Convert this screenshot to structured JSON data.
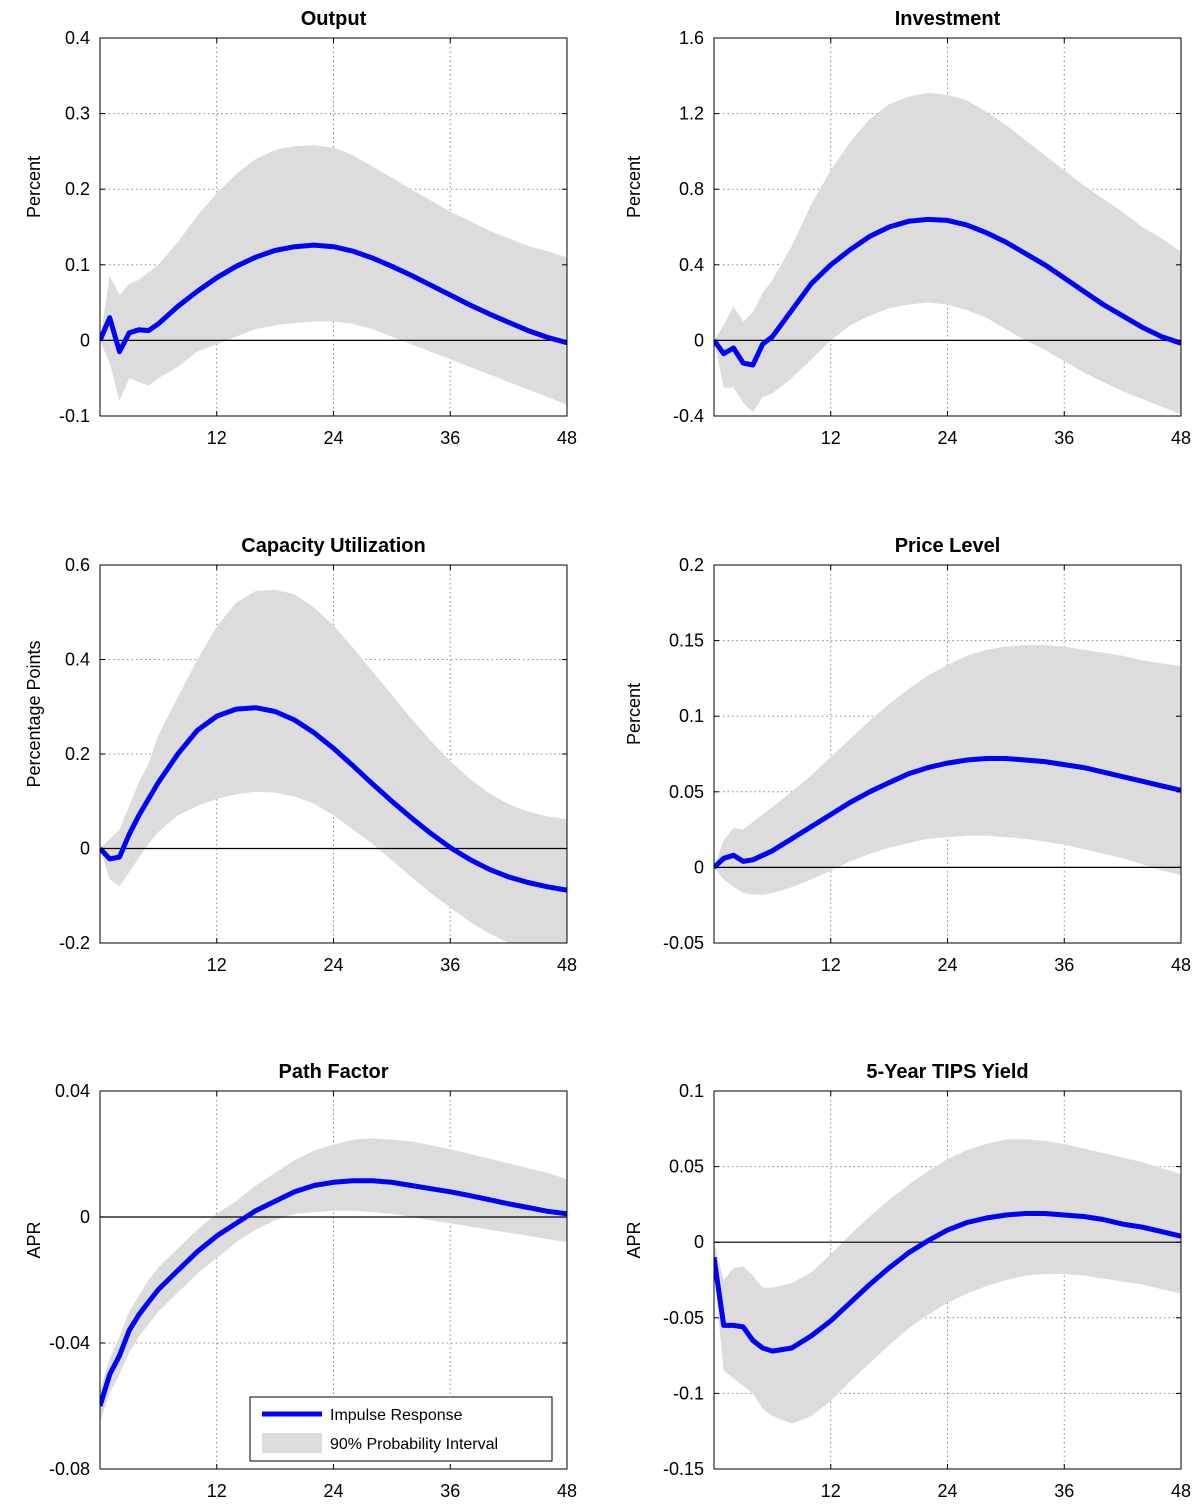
{
  "chart_data": [
    {
      "type": "line",
      "title": "Output",
      "ylabel": "Percent",
      "xlim": [
        0,
        48
      ],
      "ylim": [
        -0.1,
        0.4
      ],
      "xticks": [
        "12",
        "24",
        "36",
        "48"
      ],
      "yticks": [
        "-0.1",
        "0",
        "0.1",
        "0.2",
        "0.3",
        "0.4"
      ],
      "grid": true,
      "x": [
        0,
        1,
        2,
        3,
        4,
        5,
        6,
        8,
        10,
        12,
        14,
        16,
        18,
        20,
        22,
        24,
        26,
        28,
        30,
        32,
        34,
        36,
        38,
        40,
        42,
        44,
        46,
        48
      ],
      "series": [
        {
          "name": "Impulse Response",
          "values": [
            0,
            0.03,
            -0.015,
            0.01,
            0.014,
            0.013,
            0.022,
            0.045,
            0.065,
            0.083,
            0.098,
            0.11,
            0.119,
            0.124,
            0.126,
            0.124,
            0.118,
            0.109,
            0.098,
            0.086,
            0.073,
            0.06,
            0.047,
            0.035,
            0.024,
            0.013,
            0.004,
            -0.003
          ]
        },
        {
          "name": "90% Probability Interval",
          "lower": [
            0,
            -0.03,
            -0.08,
            -0.05,
            -0.055,
            -0.06,
            -0.05,
            -0.035,
            -0.015,
            -0.005,
            0.005,
            0.015,
            0.02,
            0.023,
            0.025,
            0.025,
            0.022,
            0.015,
            0.005,
            -0.005,
            -0.015,
            -0.025,
            -0.035,
            -0.045,
            -0.055,
            -0.065,
            -0.075,
            -0.085
          ],
          "upper": [
            0,
            0.085,
            0.06,
            0.075,
            0.08,
            0.09,
            0.1,
            0.13,
            0.165,
            0.195,
            0.22,
            0.24,
            0.252,
            0.257,
            0.258,
            0.255,
            0.245,
            0.23,
            0.215,
            0.2,
            0.185,
            0.17,
            0.158,
            0.145,
            0.135,
            0.125,
            0.118,
            0.11
          ]
        }
      ]
    },
    {
      "type": "line",
      "title": "Investment",
      "ylabel": "Percent",
      "xlim": [
        0,
        48
      ],
      "ylim": [
        -0.4,
        1.6
      ],
      "xticks": [
        "12",
        "24",
        "36",
        "48"
      ],
      "yticks": [
        "-0.4",
        "0",
        "0.4",
        "0.8",
        "1.2",
        "1.6"
      ],
      "grid": true,
      "x": [
        0,
        1,
        2,
        3,
        4,
        5,
        6,
        8,
        10,
        12,
        14,
        16,
        18,
        20,
        22,
        24,
        26,
        28,
        30,
        32,
        34,
        36,
        38,
        40,
        42,
        44,
        46,
        48
      ],
      "series": [
        {
          "name": "Impulse Response",
          "values": [
            0,
            -0.07,
            -0.04,
            -0.12,
            -0.13,
            -0.02,
            0.02,
            0.16,
            0.3,
            0.4,
            0.48,
            0.55,
            0.6,
            0.63,
            0.64,
            0.635,
            0.61,
            0.57,
            0.52,
            0.46,
            0.4,
            0.33,
            0.26,
            0.19,
            0.13,
            0.07,
            0.02,
            -0.015
          ]
        },
        {
          "name": "90% Probability Interval",
          "lower": [
            0,
            -0.25,
            -0.25,
            -0.33,
            -0.38,
            -0.3,
            -0.28,
            -0.2,
            -0.1,
            0,
            0.08,
            0.13,
            0.17,
            0.19,
            0.2,
            0.19,
            0.16,
            0.12,
            0.06,
            0,
            -0.05,
            -0.11,
            -0.17,
            -0.22,
            -0.27,
            -0.31,
            -0.35,
            -0.39
          ]
        },
        {
          "name": "90% Probability Interval (upper)",
          "upper": [
            0,
            0.08,
            0.18,
            0.1,
            0.15,
            0.25,
            0.32,
            0.5,
            0.72,
            0.9,
            1.05,
            1.17,
            1.25,
            1.29,
            1.31,
            1.3,
            1.27,
            1.21,
            1.14,
            1.06,
            0.98,
            0.9,
            0.82,
            0.75,
            0.68,
            0.6,
            0.54,
            0.47
          ]
        }
      ]
    },
    {
      "type": "line",
      "title": "Capacity Utilization",
      "ylabel": "Percentage Points",
      "xlim": [
        0,
        48
      ],
      "ylim": [
        -0.2,
        0.6
      ],
      "xticks": [
        "12",
        "24",
        "36",
        "48"
      ],
      "yticks": [
        "-0.2",
        "0",
        "0.2",
        "0.4",
        "0.6"
      ],
      "grid": true,
      "x": [
        0,
        1,
        2,
        3,
        4,
        5,
        6,
        8,
        10,
        12,
        14,
        16,
        18,
        20,
        22,
        24,
        26,
        28,
        30,
        32,
        34,
        36,
        38,
        40,
        42,
        44,
        46,
        48
      ],
      "series": [
        {
          "name": "Impulse Response",
          "values": [
            0,
            -0.022,
            -0.018,
            0.03,
            0.07,
            0.105,
            0.14,
            0.2,
            0.25,
            0.28,
            0.295,
            0.298,
            0.29,
            0.272,
            0.245,
            0.212,
            0.175,
            0.137,
            0.1,
            0.065,
            0.032,
            0.002,
            -0.023,
            -0.044,
            -0.06,
            -0.072,
            -0.081,
            -0.088
          ]
        },
        {
          "name": "90% Probability Interval",
          "lower": [
            0,
            -0.065,
            -0.08,
            -0.05,
            -0.02,
            0.01,
            0.035,
            0.07,
            0.09,
            0.105,
            0.115,
            0.12,
            0.118,
            0.11,
            0.095,
            0.07,
            0.04,
            0.01,
            -0.025,
            -0.06,
            -0.095,
            -0.125,
            -0.155,
            -0.18,
            -0.2,
            -0.215,
            -0.225,
            -0.235
          ],
          "upper": [
            0,
            0.02,
            0.04,
            0.09,
            0.14,
            0.18,
            0.24,
            0.32,
            0.4,
            0.47,
            0.52,
            0.545,
            0.548,
            0.538,
            0.51,
            0.472,
            0.425,
            0.375,
            0.325,
            0.275,
            0.228,
            0.185,
            0.148,
            0.117,
            0.094,
            0.078,
            0.068,
            0.062
          ]
        }
      ]
    },
    {
      "type": "line",
      "title": "Price Level",
      "ylabel": "Percent",
      "xlim": [
        0,
        48
      ],
      "ylim": [
        -0.05,
        0.2
      ],
      "xticks": [
        "12",
        "24",
        "36",
        "48"
      ],
      "yticks": [
        "-0.05",
        "0",
        "0.05",
        "0.1",
        "0.15",
        "0.2"
      ],
      "grid": true,
      "x": [
        0,
        1,
        2,
        3,
        4,
        5,
        6,
        8,
        10,
        12,
        14,
        16,
        18,
        20,
        22,
        24,
        26,
        28,
        30,
        32,
        34,
        36,
        38,
        40,
        42,
        44,
        46,
        48
      ],
      "series": [
        {
          "name": "Impulse Response",
          "values": [
            0,
            0.006,
            0.008,
            0.004,
            0.005,
            0.008,
            0.011,
            0.019,
            0.027,
            0.035,
            0.043,
            0.05,
            0.056,
            0.062,
            0.066,
            0.069,
            0.071,
            0.072,
            0.072,
            0.071,
            0.07,
            0.068,
            0.066,
            0.063,
            0.06,
            0.057,
            0.054,
            0.051
          ]
        },
        {
          "name": "90% Probability Interval",
          "lower": [
            0,
            -0.008,
            -0.013,
            -0.017,
            -0.018,
            -0.018,
            -0.017,
            -0.013,
            -0.008,
            -0.002,
            0.004,
            0.009,
            0.013,
            0.016,
            0.019,
            0.02,
            0.021,
            0.021,
            0.02,
            0.019,
            0.017,
            0.015,
            0.012,
            0.009,
            0.006,
            0.002,
            -0.002,
            -0.005
          ],
          "upper": [
            0,
            0.018,
            0.026,
            0.025,
            0.03,
            0.035,
            0.04,
            0.05,
            0.061,
            0.073,
            0.085,
            0.097,
            0.108,
            0.118,
            0.127,
            0.134,
            0.14,
            0.144,
            0.146,
            0.147,
            0.147,
            0.146,
            0.144,
            0.142,
            0.14,
            0.137,
            0.135,
            0.133
          ]
        }
      ]
    },
    {
      "type": "line",
      "title": "Path Factor",
      "ylabel": "APR",
      "xlim": [
        0,
        48
      ],
      "ylim": [
        -0.08,
        0.04
      ],
      "xticks": [
        "12",
        "24",
        "36",
        "48"
      ],
      "yticks": [
        "-0.08",
        "-0.04",
        "0",
        "0.04"
      ],
      "grid": true,
      "legend": "bottom-right",
      "x": [
        0,
        1,
        2,
        3,
        4,
        5,
        6,
        8,
        10,
        12,
        14,
        16,
        18,
        20,
        22,
        24,
        26,
        28,
        30,
        32,
        34,
        36,
        38,
        40,
        42,
        44,
        46,
        48
      ],
      "series": [
        {
          "name": "Impulse Response",
          "values": [
            -0.06,
            -0.05,
            -0.044,
            -0.036,
            -0.031,
            -0.027,
            -0.023,
            -0.017,
            -0.011,
            -0.006,
            -0.002,
            0.002,
            0.005,
            0.008,
            0.01,
            0.011,
            0.0115,
            0.0115,
            0.011,
            0.01,
            0.009,
            0.008,
            0.0068,
            0.0055,
            0.0042,
            0.003,
            0.0018,
            0.001
          ]
        },
        {
          "name": "90% Probability Interval",
          "lower": [
            -0.065,
            -0.056,
            -0.05,
            -0.043,
            -0.038,
            -0.034,
            -0.03,
            -0.024,
            -0.018,
            -0.013,
            -0.008,
            -0.004,
            -0.001,
            0.001,
            0.0015,
            0.002,
            0.002,
            0.0015,
            0.001,
            0,
            -0.001,
            -0.002,
            -0.003,
            -0.004,
            -0.005,
            -0.006,
            -0.007,
            -0.008
          ],
          "upper": [
            -0.055,
            -0.045,
            -0.038,
            -0.03,
            -0.025,
            -0.02,
            -0.016,
            -0.01,
            -0.004,
            0.001,
            0.005,
            0.01,
            0.014,
            0.018,
            0.021,
            0.023,
            0.0245,
            0.025,
            0.0245,
            0.024,
            0.0228,
            0.0215,
            0.02,
            0.0185,
            0.017,
            0.0155,
            0.014,
            0.012
          ]
        }
      ],
      "legend_entries": [
        "Impulse Response",
        "90% Probability Interval"
      ]
    },
    {
      "type": "line",
      "title": "5-Year TIPS Yield",
      "ylabel": "APR",
      "xlim": [
        0,
        48
      ],
      "ylim": [
        -0.15,
        0.1
      ],
      "xticks": [
        "12",
        "24",
        "36",
        "48"
      ],
      "yticks": [
        "-0.15",
        "-0.1",
        "-0.05",
        "0",
        "0.05",
        "0.1"
      ],
      "grid": true,
      "x": [
        0,
        1,
        2,
        3,
        4,
        5,
        6,
        8,
        10,
        12,
        14,
        16,
        18,
        20,
        22,
        24,
        26,
        28,
        30,
        32,
        34,
        36,
        38,
        40,
        42,
        44,
        46,
        48
      ],
      "series": [
        {
          "name": "Impulse Response",
          "values": [
            -0.01,
            -0.055,
            -0.055,
            -0.056,
            -0.065,
            -0.07,
            -0.072,
            -0.07,
            -0.062,
            -0.052,
            -0.04,
            -0.028,
            -0.017,
            -0.007,
            0.001,
            0.008,
            0.013,
            0.016,
            0.018,
            0.019,
            0.019,
            0.018,
            0.017,
            0.015,
            0.012,
            0.01,
            0.007,
            0.004
          ]
        },
        {
          "name": "90% Probability Interval",
          "lower": [
            -0.02,
            -0.085,
            -0.09,
            -0.095,
            -0.1,
            -0.11,
            -0.115,
            -0.12,
            -0.115,
            -0.105,
            -0.092,
            -0.08,
            -0.068,
            -0.057,
            -0.048,
            -0.04,
            -0.034,
            -0.029,
            -0.025,
            -0.022,
            -0.021,
            -0.021,
            -0.022,
            -0.024,
            -0.026,
            -0.028,
            -0.031,
            -0.034
          ],
          "upper": [
            0,
            -0.025,
            -0.017,
            -0.016,
            -0.022,
            -0.03,
            -0.03,
            -0.027,
            -0.02,
            -0.008,
            0.005,
            0.017,
            0.028,
            0.038,
            0.047,
            0.055,
            0.061,
            0.065,
            0.068,
            0.068,
            0.067,
            0.065,
            0.062,
            0.059,
            0.056,
            0.053,
            0.049,
            0.045
          ]
        }
      ]
    }
  ],
  "colors": {
    "line": "#0000ff",
    "band": "#dcdcdc",
    "zero_line": "#000000",
    "grid": "#8a8a8a"
  },
  "legend": {
    "line_label": "Impulse Response",
    "band_label": "90% Probability Interval"
  }
}
